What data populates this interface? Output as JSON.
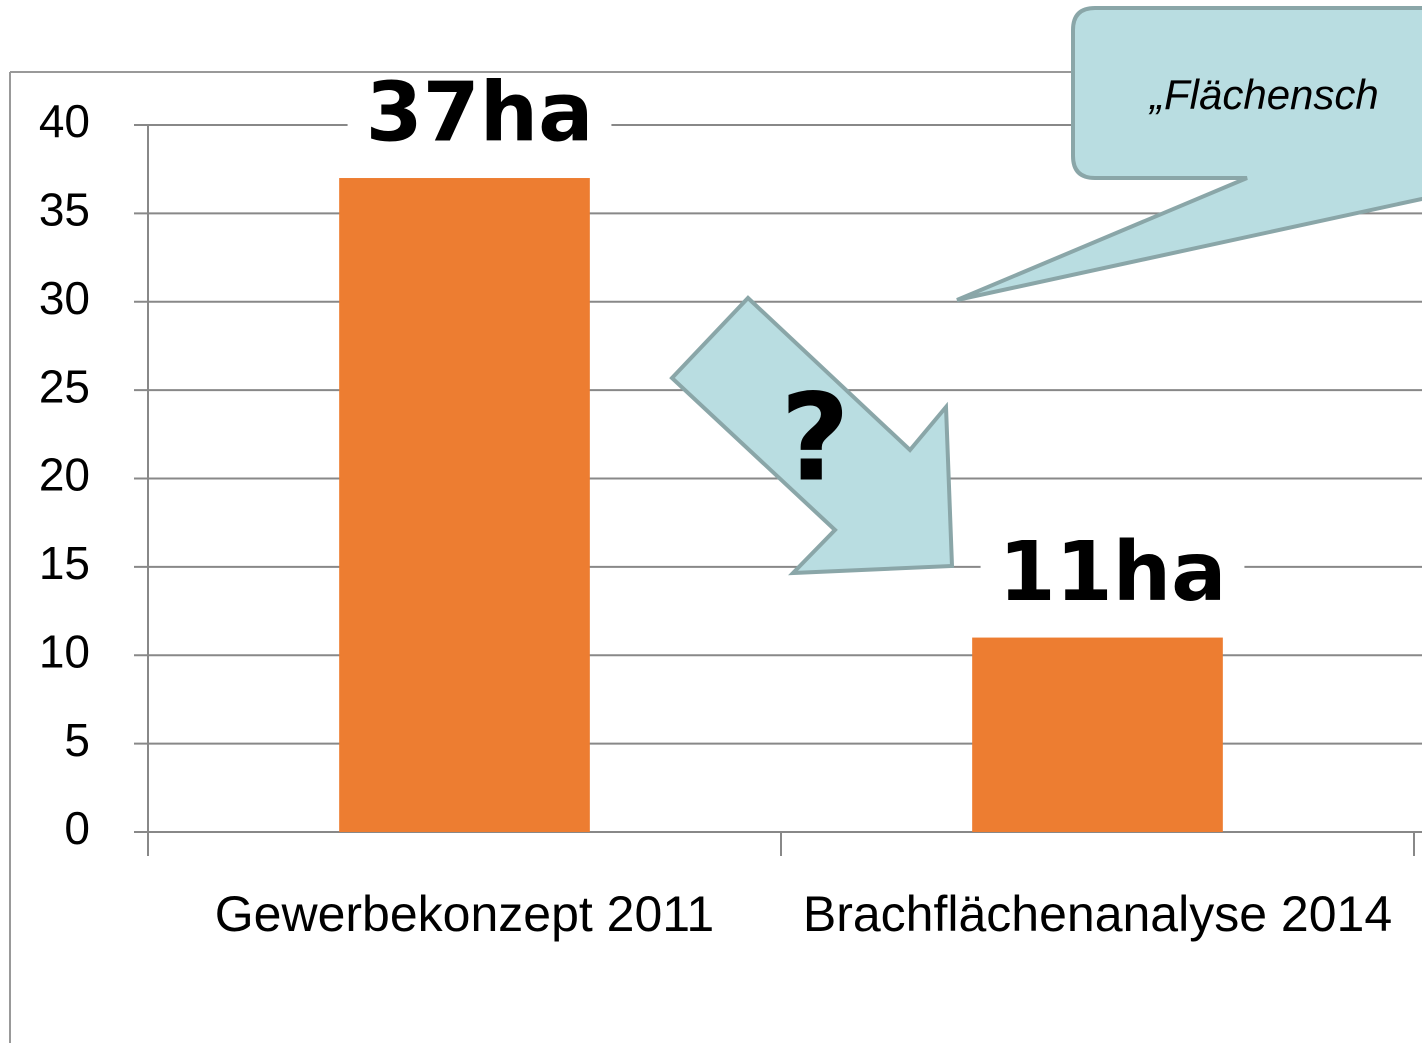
{
  "chart_data": {
    "type": "bar",
    "categories": [
      "Gewerbekonzept 2011",
      "Brachflächenanalyse 2014"
    ],
    "values": [
      37,
      11
    ],
    "value_labels": [
      "37ha",
      "11ha"
    ],
    "color": "#ed7d31",
    "ylim": [
      0,
      40
    ],
    "yticks": [
      0,
      5,
      10,
      15,
      20,
      25,
      30,
      35,
      40
    ],
    "grid": true,
    "annotations": [
      "?",
      "„Flächensch"
    ]
  }
}
